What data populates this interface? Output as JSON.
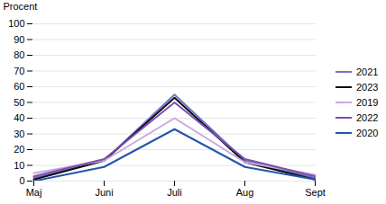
{
  "chart_data": {
    "type": "line",
    "ylabel": "Procent",
    "categories": [
      "Maj",
      "Juni",
      "Juli",
      "Aug",
      "Sept"
    ],
    "series": [
      {
        "name": "2021",
        "color": "#7474c8",
        "values": [
          2,
          13,
          55,
          13,
          2
        ]
      },
      {
        "name": "2023",
        "color": "#0d0d0d",
        "values": [
          1,
          13,
          53,
          12,
          1
        ]
      },
      {
        "name": "2019",
        "color": "#c8a8e0",
        "values": [
          5,
          13,
          40,
          12,
          4
        ]
      },
      {
        "name": "2022",
        "color": "#7b4faf",
        "values": [
          3,
          14,
          50,
          14,
          3
        ]
      },
      {
        "name": "2020",
        "color": "#2255aa",
        "values": [
          0,
          9,
          33,
          9,
          1
        ]
      }
    ],
    "ylim": [
      0,
      100
    ],
    "yticks": [
      0,
      10,
      20,
      30,
      40,
      50,
      60,
      70,
      80,
      90,
      100
    ],
    "grid": true,
    "legend": "right"
  }
}
